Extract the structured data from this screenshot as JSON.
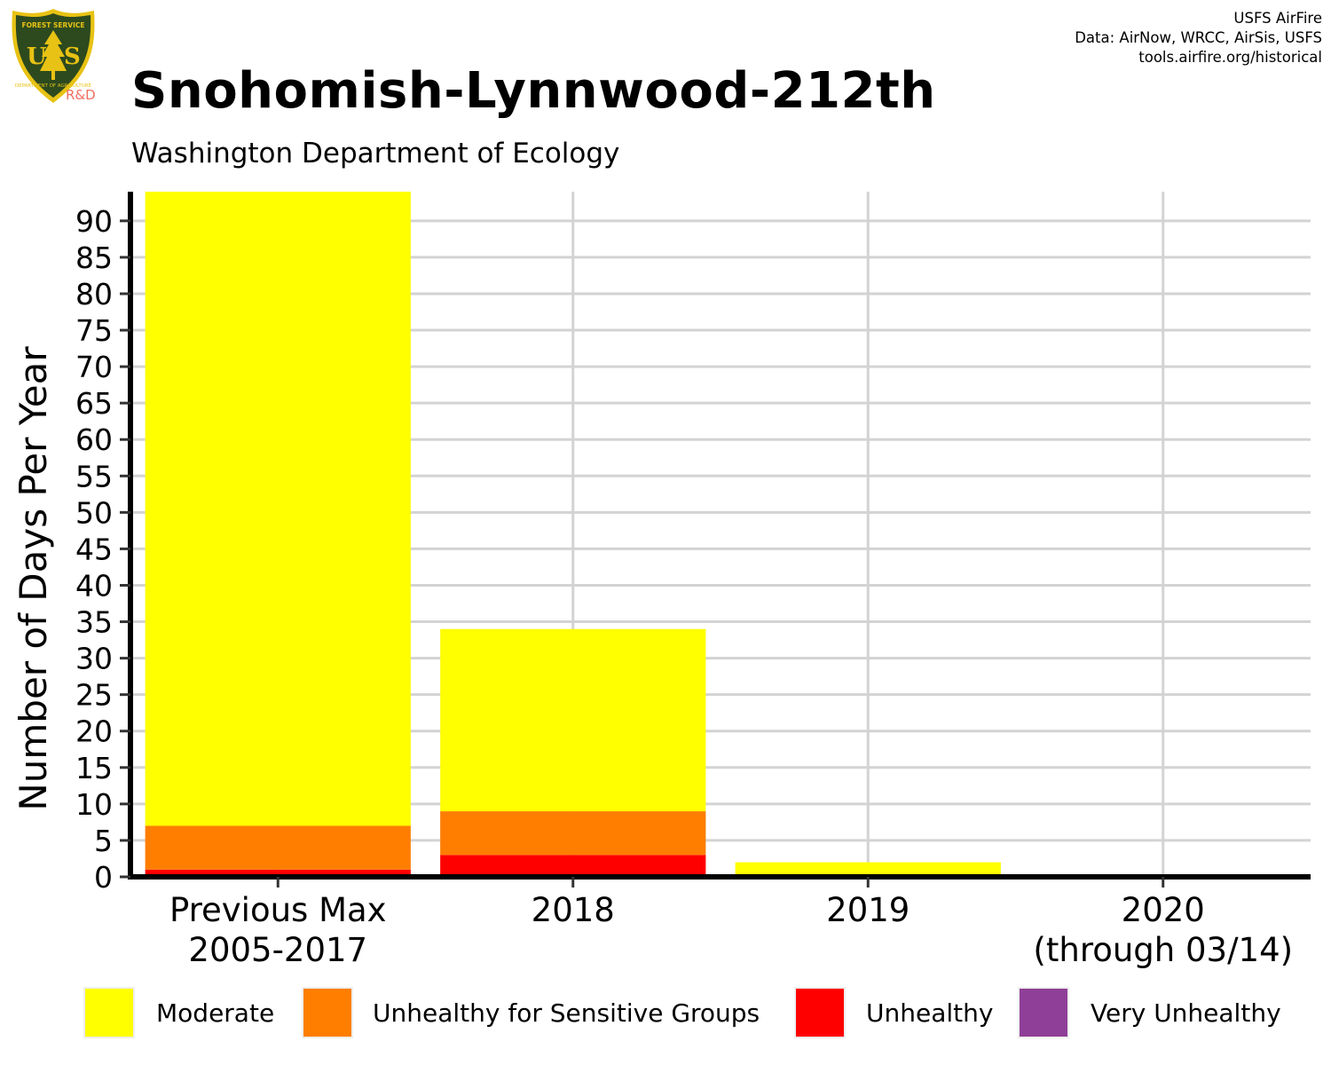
{
  "logo": {
    "shield_text_top": "FOREST SERVICE",
    "shield_letters": "USFS",
    "shield_text_bottom": "DEPARTMENT OF AGRICULTURE",
    "rd": "R&D"
  },
  "credits": {
    "line1": "USFS AirFire",
    "line2": "Data: AirNow, WRCC, AirSis, USFS",
    "line3": "tools.airfire.org/historical"
  },
  "title": "Snohomish-Lynnwood-212th",
  "subtitle": "Washington Department of Ecology",
  "colors": {
    "Moderate": "#ffff00",
    "Unhealthy for Sensitive Groups": "#ff7e00",
    "Unhealthy": "#ff0000",
    "Very Unhealthy": "#8f3f97",
    "grid": "#d3d3d3",
    "logo_green": "#2d4a1e",
    "logo_gold": "#e8c214",
    "rd": "#f07060"
  },
  "chart_data": {
    "type": "bar",
    "stacked": true,
    "ylabel": "Number of Days Per Year",
    "xlabel": "",
    "ylim": [
      0,
      94
    ],
    "yticks": [
      0,
      5,
      10,
      15,
      20,
      25,
      30,
      35,
      40,
      45,
      50,
      55,
      60,
      65,
      70,
      75,
      80,
      85,
      90
    ],
    "grid": true,
    "legend_position": "bottom",
    "categories": [
      [
        "Previous Max",
        "2005-2017"
      ],
      [
        "2018"
      ],
      [
        "2019"
      ],
      [
        "2020",
        "(through 03/14)"
      ]
    ],
    "series": [
      {
        "name": "Moderate",
        "values": [
          87,
          25,
          2,
          0
        ]
      },
      {
        "name": "Unhealthy for Sensitive Groups",
        "values": [
          6,
          6,
          0,
          0
        ]
      },
      {
        "name": "Unhealthy",
        "values": [
          1,
          3,
          0,
          0
        ]
      },
      {
        "name": "Very Unhealthy",
        "values": [
          0,
          0,
          0,
          0
        ]
      }
    ]
  }
}
